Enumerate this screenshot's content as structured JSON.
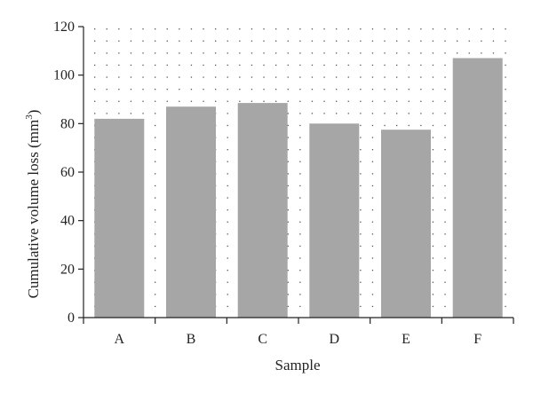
{
  "chart_data": {
    "type": "bar",
    "title": "",
    "xlabel": "Sample",
    "ylabel_main": "Cumulative volume loss (mm",
    "ylabel_sup": "3",
    "ylabel_close": ")",
    "categories": [
      "A",
      "B",
      "C",
      "D",
      "E",
      "F"
    ],
    "values": [
      82,
      87,
      88.5,
      80,
      77.5,
      107
    ],
    "ylim": [
      0,
      120
    ],
    "yticks": [
      0,
      20,
      40,
      60,
      80,
      100,
      120
    ],
    "grid": "dotted",
    "bar_color": "#a6a6a6",
    "axis_color": "#222222"
  }
}
